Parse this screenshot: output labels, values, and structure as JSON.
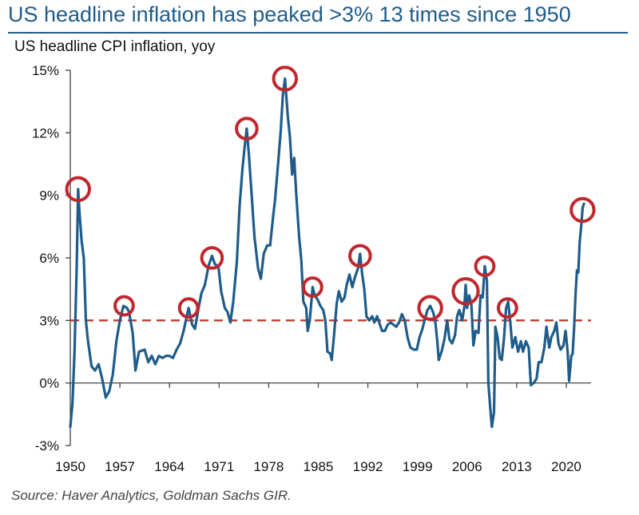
{
  "chart_data": {
    "type": "line",
    "title": "US headline inflation has peaked >3% 13 times since 1950",
    "subtitle": "US headline CPI inflation, yoy",
    "source": "Source: Haver Analytics, Goldman Sachs GIR.",
    "xlabel": "",
    "ylabel": "",
    "xlim": [
      1950,
      2023.5
    ],
    "ylim": [
      -3,
      15
    ],
    "y_ticks": [
      15,
      12,
      9,
      6,
      3,
      0,
      -3
    ],
    "y_tick_labels": [
      "15%",
      "12%",
      "9%",
      "6%",
      "3%",
      "0%",
      "-3%"
    ],
    "x_ticks": [
      1950,
      1957,
      1964,
      1971,
      1978,
      1985,
      1992,
      1999,
      2006,
      2013,
      2020
    ],
    "x_tick_labels": [
      "1950",
      "1957",
      "1964",
      "1971",
      "1978",
      "1985",
      "1992",
      "1999",
      "2006",
      "2013",
      "2020"
    ],
    "reference_line": {
      "value": 3,
      "style": "dashed",
      "color": "#c0392b"
    },
    "colors": {
      "series": "#1f5c8a",
      "circles": "#c0272d",
      "axis": "#333333",
      "title": "#1f5c8a"
    },
    "series": [
      {
        "name": "US headline CPI inflation, yoy",
        "points": [
          [
            1950.0,
            -2.1
          ],
          [
            1950.3,
            -1.0
          ],
          [
            1950.6,
            1.5
          ],
          [
            1950.9,
            5.5
          ],
          [
            1951.1,
            9.3
          ],
          [
            1951.3,
            8.2
          ],
          [
            1951.6,
            6.8
          ],
          [
            1951.9,
            6.0
          ],
          [
            1952.2,
            3.0
          ],
          [
            1952.5,
            2.0
          ],
          [
            1952.8,
            1.3
          ],
          [
            1953.0,
            0.8
          ],
          [
            1953.5,
            0.6
          ],
          [
            1954.0,
            0.9
          ],
          [
            1954.5,
            0.2
          ],
          [
            1955.0,
            -0.7
          ],
          [
            1955.5,
            -0.4
          ],
          [
            1956.0,
            0.4
          ],
          [
            1956.5,
            2.0
          ],
          [
            1957.0,
            3.0
          ],
          [
            1957.5,
            3.7
          ],
          [
            1958.0,
            3.6
          ],
          [
            1958.3,
            3.4
          ],
          [
            1958.8,
            2.4
          ],
          [
            1959.2,
            0.6
          ],
          [
            1959.7,
            1.5
          ],
          [
            1960.5,
            1.6
          ],
          [
            1961.0,
            1.0
          ],
          [
            1961.5,
            1.3
          ],
          [
            1962.0,
            0.9
          ],
          [
            1962.5,
            1.3
          ],
          [
            1963.0,
            1.2
          ],
          [
            1963.5,
            1.3
          ],
          [
            1964.0,
            1.3
          ],
          [
            1964.5,
            1.2
          ],
          [
            1965.0,
            1.6
          ],
          [
            1965.5,
            1.9
          ],
          [
            1966.0,
            2.5
          ],
          [
            1966.7,
            3.6
          ],
          [
            1967.2,
            2.8
          ],
          [
            1967.6,
            2.6
          ],
          [
            1968.0,
            3.4
          ],
          [
            1968.5,
            4.3
          ],
          [
            1969.0,
            4.7
          ],
          [
            1969.5,
            5.6
          ],
          [
            1970.0,
            6.1
          ],
          [
            1970.4,
            5.7
          ],
          [
            1970.9,
            5.6
          ],
          [
            1971.3,
            4.4
          ],
          [
            1971.8,
            3.6
          ],
          [
            1972.2,
            3.4
          ],
          [
            1972.6,
            2.9
          ],
          [
            1973.0,
            3.9
          ],
          [
            1973.5,
            5.8
          ],
          [
            1973.9,
            8.5
          ],
          [
            1974.3,
            10.3
          ],
          [
            1974.6,
            11.3
          ],
          [
            1974.9,
            12.2
          ],
          [
            1975.2,
            11.0
          ],
          [
            1975.6,
            9.0
          ],
          [
            1976.0,
            7.0
          ],
          [
            1976.5,
            5.5
          ],
          [
            1976.9,
            5.0
          ],
          [
            1977.3,
            6.2
          ],
          [
            1977.8,
            6.6
          ],
          [
            1978.2,
            6.6
          ],
          [
            1978.6,
            7.9
          ],
          [
            1978.9,
            8.8
          ],
          [
            1979.3,
            10.4
          ],
          [
            1979.7,
            12.1
          ],
          [
            1980.0,
            13.8
          ],
          [
            1980.3,
            14.6
          ],
          [
            1980.7,
            12.8
          ],
          [
            1981.0,
            11.8
          ],
          [
            1981.3,
            10.0
          ],
          [
            1981.6,
            10.8
          ],
          [
            1981.9,
            9.0
          ],
          [
            1982.3,
            7.0
          ],
          [
            1982.6,
            5.9
          ],
          [
            1982.9,
            3.9
          ],
          [
            1983.3,
            3.6
          ],
          [
            1983.5,
            2.5
          ],
          [
            1983.8,
            3.0
          ],
          [
            1984.2,
            4.6
          ],
          [
            1984.5,
            4.2
          ],
          [
            1984.9,
            4.0
          ],
          [
            1985.3,
            3.7
          ],
          [
            1985.7,
            3.5
          ],
          [
            1986.0,
            3.0
          ],
          [
            1986.3,
            1.5
          ],
          [
            1986.7,
            1.4
          ],
          [
            1986.9,
            1.1
          ],
          [
            1987.2,
            2.2
          ],
          [
            1987.6,
            3.8
          ],
          [
            1987.9,
            4.4
          ],
          [
            1988.3,
            3.9
          ],
          [
            1988.7,
            4.1
          ],
          [
            1989.0,
            4.7
          ],
          [
            1989.4,
            5.2
          ],
          [
            1989.8,
            4.6
          ],
          [
            1990.2,
            5.1
          ],
          [
            1990.6,
            5.5
          ],
          [
            1990.9,
            6.2
          ],
          [
            1991.2,
            5.2
          ],
          [
            1991.5,
            4.5
          ],
          [
            1991.8,
            3.2
          ],
          [
            1992.2,
            3.0
          ],
          [
            1992.6,
            3.2
          ],
          [
            1992.9,
            2.9
          ],
          [
            1993.3,
            3.2
          ],
          [
            1993.7,
            2.8
          ],
          [
            1994.0,
            2.5
          ],
          [
            1994.4,
            2.5
          ],
          [
            1994.8,
            2.8
          ],
          [
            1995.2,
            2.9
          ],
          [
            1995.6,
            2.8
          ],
          [
            1996.0,
            2.7
          ],
          [
            1996.4,
            2.9
          ],
          [
            1996.8,
            3.3
          ],
          [
            1997.2,
            3.0
          ],
          [
            1997.6,
            2.2
          ],
          [
            1998.0,
            1.7
          ],
          [
            1998.5,
            1.6
          ],
          [
            1998.9,
            1.6
          ],
          [
            1999.3,
            2.2
          ],
          [
            1999.7,
            2.6
          ],
          [
            2000.0,
            3.0
          ],
          [
            2000.4,
            3.5
          ],
          [
            2000.8,
            3.7
          ],
          [
            2001.2,
            3.4
          ],
          [
            2001.5,
            3.0
          ],
          [
            2001.8,
            2.0
          ],
          [
            2002.0,
            1.1
          ],
          [
            2002.4,
            1.5
          ],
          [
            2002.8,
            2.1
          ],
          [
            2003.2,
            3.0
          ],
          [
            2003.5,
            2.1
          ],
          [
            2003.9,
            1.9
          ],
          [
            2004.3,
            2.3
          ],
          [
            2004.6,
            3.2
          ],
          [
            2004.9,
            3.5
          ],
          [
            2005.3,
            3.0
          ],
          [
            2005.6,
            3.6
          ],
          [
            2005.8,
            4.7
          ],
          [
            2006.0,
            3.6
          ],
          [
            2006.3,
            4.2
          ],
          [
            2006.6,
            3.8
          ],
          [
            2006.9,
            1.8
          ],
          [
            2007.2,
            2.5
          ],
          [
            2007.6,
            2.4
          ],
          [
            2007.9,
            4.2
          ],
          [
            2008.2,
            4.1
          ],
          [
            2008.5,
            5.6
          ],
          [
            2008.8,
            4.9
          ],
          [
            2009.0,
            0.0
          ],
          [
            2009.3,
            -1.3
          ],
          [
            2009.5,
            -2.1
          ],
          [
            2009.8,
            -1.4
          ],
          [
            2010.0,
            2.7
          ],
          [
            2010.3,
            2.2
          ],
          [
            2010.6,
            1.2
          ],
          [
            2010.9,
            1.1
          ],
          [
            2011.2,
            2.1
          ],
          [
            2011.5,
            3.6
          ],
          [
            2011.8,
            3.9
          ],
          [
            2012.1,
            2.9
          ],
          [
            2012.4,
            1.7
          ],
          [
            2012.8,
            2.2
          ],
          [
            2013.2,
            1.5
          ],
          [
            2013.6,
            2.0
          ],
          [
            2013.9,
            1.5
          ],
          [
            2014.3,
            2.0
          ],
          [
            2014.7,
            1.7
          ],
          [
            2015.0,
            -0.1
          ],
          [
            2015.4,
            0.0
          ],
          [
            2015.8,
            0.2
          ],
          [
            2016.1,
            1.0
          ],
          [
            2016.5,
            1.0
          ],
          [
            2016.9,
            1.7
          ],
          [
            2017.2,
            2.7
          ],
          [
            2017.6,
            1.7
          ],
          [
            2017.9,
            2.2
          ],
          [
            2018.3,
            2.5
          ],
          [
            2018.6,
            2.9
          ],
          [
            2018.9,
            1.9
          ],
          [
            2019.2,
            1.6
          ],
          [
            2019.6,
            1.8
          ],
          [
            2019.9,
            2.5
          ],
          [
            2020.2,
            1.5
          ],
          [
            2020.4,
            0.1
          ],
          [
            2020.7,
            1.3
          ],
          [
            2020.9,
            1.4
          ],
          [
            2021.1,
            2.6
          ],
          [
            2021.3,
            4.2
          ],
          [
            2021.5,
            5.4
          ],
          [
            2021.7,
            5.3
          ],
          [
            2021.9,
            6.8
          ],
          [
            2022.1,
            7.5
          ],
          [
            2022.3,
            8.4
          ],
          [
            2022.5,
            8.6
          ]
        ]
      }
    ],
    "highlighted_peaks": [
      {
        "x": 1951.1,
        "y": 9.3,
        "r": 1.0
      },
      {
        "x": 1957.6,
        "y": 3.7,
        "r": 0.8
      },
      {
        "x": 1966.7,
        "y": 3.6,
        "r": 0.8
      },
      {
        "x": 1970.0,
        "y": 6.0,
        "r": 0.9
      },
      {
        "x": 1974.9,
        "y": 12.2,
        "r": 0.9
      },
      {
        "x": 1980.3,
        "y": 14.6,
        "r": 1.0
      },
      {
        "x": 1984.2,
        "y": 4.6,
        "r": 0.8
      },
      {
        "x": 1990.9,
        "y": 6.1,
        "r": 0.9
      },
      {
        "x": 2000.8,
        "y": 3.6,
        "r": 1.0
      },
      {
        "x": 2005.8,
        "y": 4.4,
        "r": 1.1
      },
      {
        "x": 2008.5,
        "y": 5.6,
        "r": 0.8
      },
      {
        "x": 2011.7,
        "y": 3.6,
        "r": 0.8
      },
      {
        "x": 2022.3,
        "y": 8.3,
        "r": 1.0
      }
    ]
  }
}
